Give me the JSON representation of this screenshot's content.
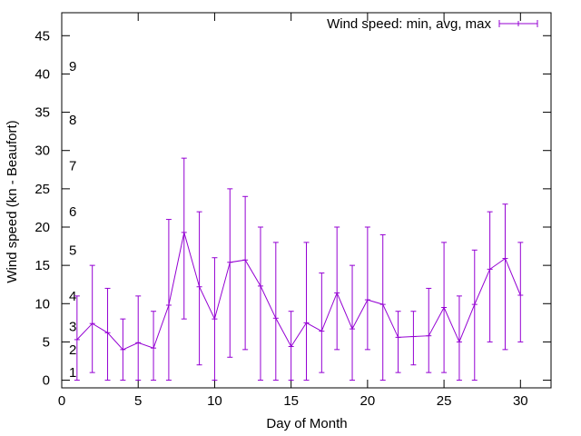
{
  "chart_data": {
    "type": "line",
    "title": "",
    "xlabel": "Day of Month",
    "ylabel": "Wind speed (kn - Beaufort)",
    "xlim": [
      0,
      32
    ],
    "ylim": [
      -1,
      48
    ],
    "x_ticks": [
      0,
      5,
      10,
      15,
      20,
      25,
      30
    ],
    "y_ticks": [
      0,
      5,
      10,
      15,
      20,
      25,
      30,
      35,
      40,
      45
    ],
    "legend_position": "top-right",
    "grid": false,
    "series": [
      {
        "name": "Wind speed: min, avg, max",
        "color": "#9400d3",
        "x": [
          1,
          2,
          3,
          4,
          5,
          6,
          7,
          8,
          9,
          10,
          11,
          12,
          13,
          14,
          15,
          16,
          17,
          18,
          19,
          20,
          21,
          22,
          23,
          24,
          25,
          26,
          27,
          28,
          29,
          30
        ],
        "avg": [
          5.3,
          7.4,
          6.2,
          4.0,
          4.9,
          4.2,
          9.8,
          19.3,
          12.2,
          8.0,
          15.4,
          15.7,
          12.3,
          8.1,
          4.4,
          7.5,
          6.4,
          11.4,
          6.7,
          10.5,
          9.9,
          5.6,
          5.7,
          5.8,
          9.5,
          5.0,
          9.9,
          14.5,
          15.9,
          11.1
        ],
        "min": [
          0,
          1,
          0,
          0,
          0,
          0,
          0,
          8,
          2,
          0,
          3,
          4,
          0,
          0,
          0,
          0,
          1,
          4,
          0,
          4,
          0,
          1,
          2,
          1,
          1,
          0,
          0,
          5,
          4,
          5
        ],
        "max": [
          11,
          15,
          12,
          8,
          11,
          9,
          21,
          29,
          22,
          16,
          25,
          24,
          20,
          18,
          9,
          18,
          14,
          20,
          15,
          20,
          19,
          9,
          9,
          12,
          18,
          11,
          17,
          22,
          23,
          18
        ]
      }
    ],
    "annotations": [
      {
        "text": "1",
        "y": 1
      },
      {
        "text": "2",
        "y": 4
      },
      {
        "text": "3",
        "y": 7
      },
      {
        "text": "4",
        "y": 11
      },
      {
        "text": "5",
        "y": 17
      },
      {
        "text": "6",
        "y": 22
      },
      {
        "text": "7",
        "y": 28
      },
      {
        "text": "8",
        "y": 34
      },
      {
        "text": "9",
        "y": 41
      }
    ]
  }
}
